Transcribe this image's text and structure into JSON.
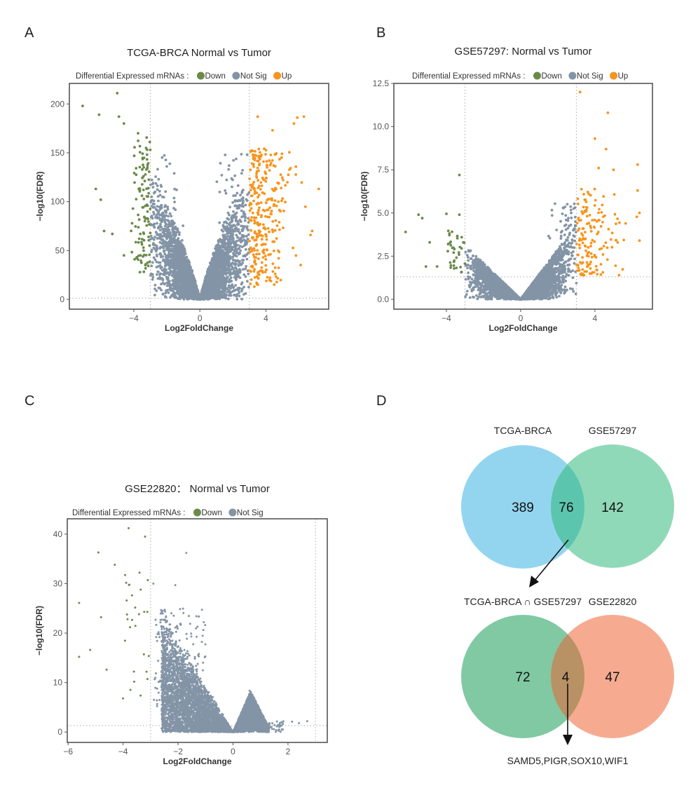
{
  "panel_labels": [
    "A",
    "B",
    "C",
    "D"
  ],
  "colors": {
    "down": "#6b8a4a",
    "not_sig": "#8394a6",
    "up": "#f7941d",
    "frame": "#555555",
    "threshold": "#aaaaaa"
  },
  "chart_data": [
    {
      "type": "scatter",
      "panel": "A",
      "title": "TCGA-BRCA Normal vs Tumor",
      "legend_title": "Differential Expressed mRNAs :",
      "legend": [
        "Down",
        "Not Sig",
        "Up"
      ],
      "legend_placement": "top",
      "xlabel": "Log2FoldChange",
      "ylabel": "-log10(FDR)",
      "xlim": [
        -7.9,
        7.8
      ],
      "ylim": [
        -10,
        221
      ],
      "xticks": [
        -4,
        0,
        4
      ],
      "xtick_labels": [
        "−4",
        "0",
        "4"
      ],
      "yticks": [
        0,
        50,
        100,
        150,
        200
      ],
      "ytick_labels": [
        "0",
        "50",
        "100",
        "150",
        "200"
      ],
      "thresholds": {
        "log2fc": [
          -3,
          3
        ],
        "neg_log10_fdr": 1.3
      },
      "grid": false,
      "highlighted_points": {
        "Down": [
          [
            -7.1,
            198
          ],
          [
            -5,
            211
          ],
          [
            -6.1,
            189
          ],
          [
            -4.9,
            187
          ],
          [
            -4.6,
            180
          ],
          [
            -6.3,
            113
          ],
          [
            -6,
            102
          ],
          [
            -5.8,
            70
          ],
          [
            -5.3,
            67
          ],
          [
            -4.6,
            45
          ]
        ],
        "Up": [
          [
            3.5,
            187
          ],
          [
            6.3,
            187
          ],
          [
            5.9,
            186
          ],
          [
            5.7,
            180
          ],
          [
            4.4,
            173
          ],
          [
            7.2,
            113
          ],
          [
            6.8,
            70
          ],
          [
            6.7,
            66
          ],
          [
            3.3,
            13
          ]
        ]
      }
    },
    {
      "type": "scatter",
      "panel": "B",
      "title": "GSE57297: Normal vs Tumor",
      "legend_title": "Differential Expressed mRNAs :",
      "legend": [
        "Down",
        "Not Sig",
        "Up"
      ],
      "legend_placement": "top",
      "xlabel": "Log2FoldChange",
      "ylabel": "-log10(FDR)",
      "xlim": [
        -6.83,
        7.1
      ],
      "ylim": [
        -0.57,
        12.5
      ],
      "xticks": [
        -4,
        0,
        4
      ],
      "xtick_labels": [
        "−4",
        "0",
        "4"
      ],
      "yticks": [
        0,
        2.5,
        5,
        7.5,
        10,
        12.5
      ],
      "ytick_labels": [
        "0.0",
        "2.5",
        "5.0",
        "7.5",
        "10.0",
        "12.5"
      ],
      "thresholds": {
        "log2fc": [
          -3,
          3
        ],
        "neg_log10_fdr": 1.3
      },
      "grid": false,
      "highlighted_points": {
        "Down": [
          [
            -3.3,
            7.2
          ],
          [
            -5.5,
            4.9
          ],
          [
            -5.3,
            4.7
          ],
          [
            -4,
            4.95
          ],
          [
            -3.3,
            4.9
          ],
          [
            -6.2,
            3.9
          ],
          [
            -4.9,
            3.3
          ],
          [
            -5.1,
            1.9
          ],
          [
            -4.5,
            1.9
          ]
        ],
        "Up": [
          [
            3.2,
            12
          ],
          [
            4.7,
            10.8
          ],
          [
            4,
            9.3
          ],
          [
            4.6,
            8.7
          ],
          [
            6.3,
            7.8
          ],
          [
            4.2,
            7.6
          ],
          [
            5,
            7.5
          ],
          [
            6.3,
            6.3
          ],
          [
            6.4,
            3.4
          ]
        ]
      }
    },
    {
      "type": "scatter",
      "panel": "C",
      "title": "GSE22820： Normal vs Tumor",
      "legend_title": "Differential Expressed mRNAs :",
      "legend": [
        "Down",
        "Not Sig"
      ],
      "legend_placement": "top",
      "xlabel": "Log2FoldChange",
      "ylabel": "-log10(FDR)",
      "xlim": [
        -6.03,
        3.43
      ],
      "ylim": [
        -2.1,
        43.1
      ],
      "xticks": [
        -6,
        -4,
        -2,
        0,
        2
      ],
      "xtick_labels": [
        "−6",
        "−4",
        "−2",
        "0",
        "2"
      ],
      "yticks": [
        0,
        10,
        20,
        30,
        40
      ],
      "ytick_labels": [
        "0",
        "10",
        "20",
        "30",
        "40"
      ],
      "thresholds": {
        "log2fc": [
          -3,
          3
        ],
        "neg_log10_fdr": 1.3
      },
      "grid": false,
      "highlighted_points": {
        "Down": [
          [
            -3.8,
            41.2
          ],
          [
            -3.2,
            39.5
          ],
          [
            -4.9,
            36.3
          ],
          [
            -4.3,
            33.8
          ],
          [
            -3.4,
            32.2
          ],
          [
            -3.1,
            30.7
          ],
          [
            -5.6,
            26.1
          ],
          [
            -4.8,
            23.2
          ],
          [
            -5.2,
            16.6
          ],
          [
            -5.6,
            15.2
          ],
          [
            -4.6,
            12.6
          ],
          [
            -4,
            6.8
          ]
        ],
        "Not Sig": [
          [
            -1.7,
            36.2
          ],
          [
            -2.9,
            30
          ],
          [
            -2.1,
            29.7
          ],
          [
            2.7,
            2.2
          ],
          [
            2.4,
            1.8
          ],
          [
            2.15,
            2.1
          ]
        ]
      }
    },
    {
      "type": "venn",
      "panel": "D",
      "diagrams": [
        {
          "sets": [
            "TCGA-BRCA",
            "GSE57297"
          ],
          "counts": {
            "only_left": 389,
            "intersection": 76,
            "only_right": 142
          },
          "colors": [
            "#93d5ef",
            "#8fd9b9"
          ],
          "overlap_color": "#5cc5ae"
        },
        {
          "sets": [
            "TCGA-BRCA ∩ GSE57297",
            "GSE22820"
          ],
          "counts": {
            "only_left": 72,
            "intersection": 4,
            "only_right": 47
          },
          "colors": [
            "#80c9a3",
            "#f6ab91"
          ],
          "overlap_color": "#b89164"
        }
      ],
      "result_genes": "SAMD5,PIGR,SOX10,WIF1"
    }
  ]
}
